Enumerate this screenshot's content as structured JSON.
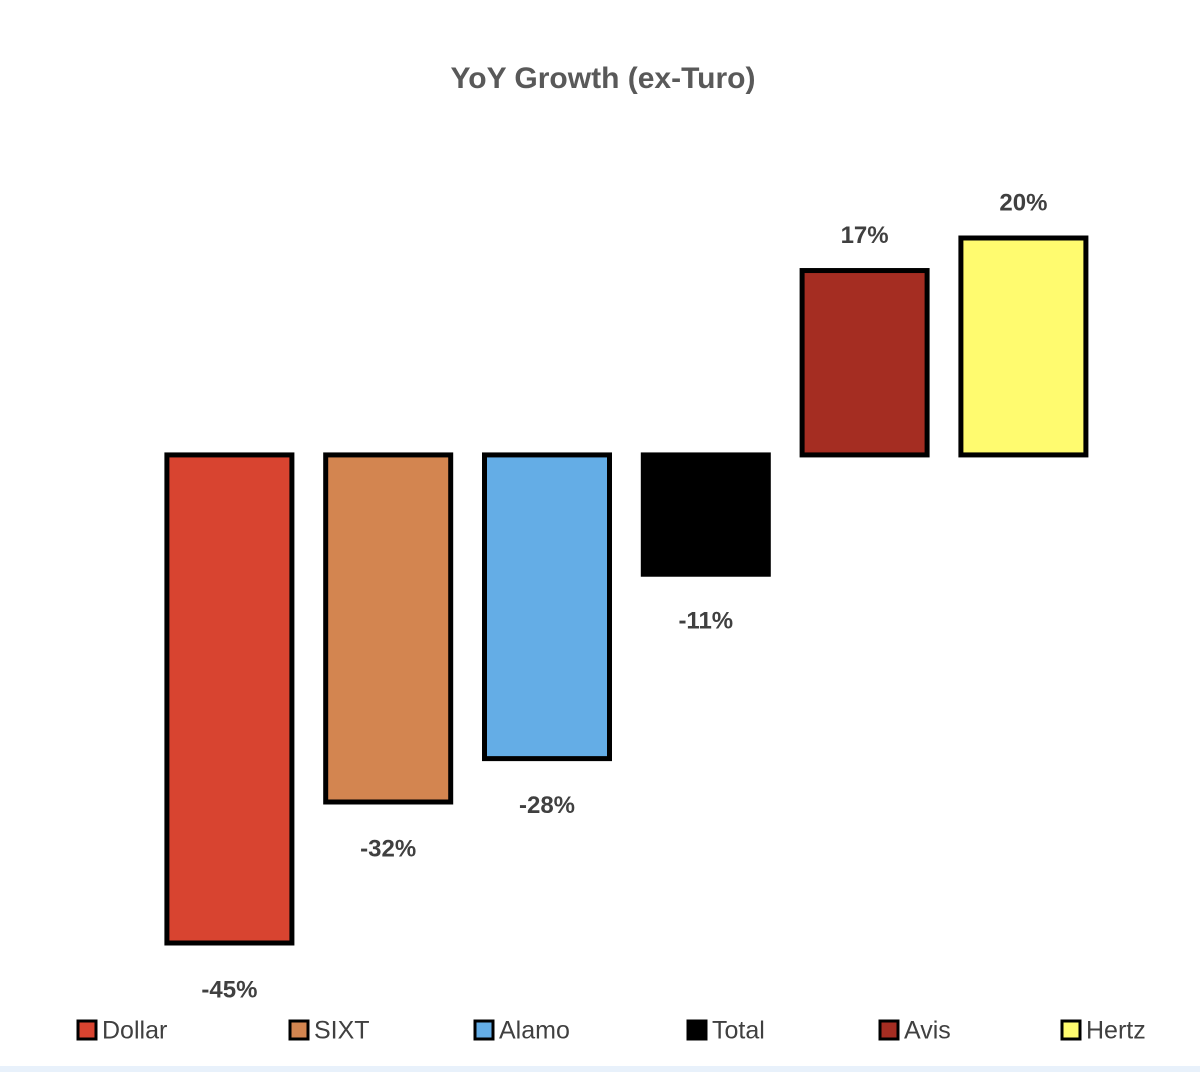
{
  "chart_data": {
    "type": "bar",
    "title": "YoY Growth (ex-Turo)",
    "series": [
      {
        "name": "Dollar",
        "color": "#d84430",
        "values": [
          -45
        ],
        "value_labels": [
          "-45%"
        ]
      },
      {
        "name": "SIXT",
        "color": "#d38550",
        "values": [
          -32
        ],
        "value_labels": [
          "-32%"
        ]
      },
      {
        "name": "Alamo",
        "color": "#64ade6",
        "values": [
          -28
        ],
        "value_labels": [
          "-28%"
        ]
      },
      {
        "name": "Total",
        "color": "#000000",
        "values": [
          -11
        ],
        "value_labels": [
          "-11%"
        ]
      },
      {
        "name": "Avis",
        "color": "#a52d22",
        "values": [
          17
        ],
        "value_labels": [
          "17%"
        ]
      },
      {
        "name": "Hertz",
        "color": "#fffb6f",
        "values": [
          20
        ],
        "value_labels": [
          "20%"
        ]
      }
    ]
  }
}
